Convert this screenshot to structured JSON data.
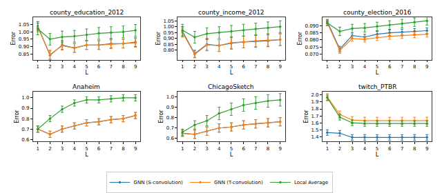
{
  "chart_data": [
    {
      "type": "line",
      "title": "county_education_2012",
      "x_label": "L",
      "y_label": "Error",
      "x": [
        1,
        2,
        3,
        4,
        5,
        6,
        7,
        8,
        9
      ],
      "xlim": [
        0.6,
        9.4
      ],
      "xticks": [
        1,
        2,
        3,
        4,
        5,
        6,
        7,
        8,
        9
      ],
      "ylim": [
        0.81,
        1.1
      ],
      "yticks": [
        0.85,
        {
          "value": 0.9,
          "label": "0.90"
        },
        0.95,
        {
          "value": 1.0,
          "label": "1.00"
        },
        1.05
      ],
      "grid": false,
      "marker": "circle",
      "legend": "bottom",
      "series": [
        {
          "name": "GNN (S-convolution)",
          "color": "#1f77b4",
          "values": [
            1.04,
            0.84,
            0.91,
            0.89,
            0.91,
            0.91,
            0.92,
            0.92,
            0.93
          ],
          "error": [
            0.03,
            0.03,
            0.03,
            0.03,
            0.03,
            0.03,
            0.03,
            0.03,
            0.03
          ]
        },
        {
          "name": "GNN (T-convolution)",
          "color": "#ff7f0e",
          "values": [
            1.03,
            0.845,
            0.905,
            0.89,
            0.91,
            0.91,
            0.915,
            0.92,
            0.925
          ],
          "error": [
            0.03,
            0.03,
            0.03,
            0.03,
            0.03,
            0.03,
            0.03,
            0.03,
            0.03
          ]
        },
        {
          "name": "Local Average",
          "color": "#2ca02c",
          "values": [
            1.02,
            0.95,
            0.965,
            0.97,
            0.98,
            0.99,
            0.995,
            1.0,
            1.01
          ],
          "error": [
            0.04,
            0.04,
            0.04,
            0.04,
            0.04,
            0.04,
            0.04,
            0.04,
            0.04
          ]
        }
      ]
    },
    {
      "type": "line",
      "title": "county_income_2012",
      "x_label": "L",
      "y_label": "Error",
      "x": [
        1,
        2,
        3,
        4,
        5,
        6,
        7,
        8,
        9
      ],
      "xlim": [
        0.6,
        9.4
      ],
      "xticks": [
        1,
        2,
        3,
        4,
        5,
        6,
        7,
        8,
        9
      ],
      "ylim": [
        0.72,
        1.08
      ],
      "yticks": [
        {
          "value": 0.8,
          "label": "0.80"
        },
        0.85,
        {
          "value": 0.9,
          "label": "0.90"
        },
        0.95,
        {
          "value": 1.0,
          "label": "1.00"
        },
        1.05
      ],
      "grid": false,
      "marker": "circle",
      "series": [
        {
          "name": "GNN (S-convolution)",
          "color": "#1f77b4",
          "values": [
            0.96,
            0.77,
            0.85,
            0.84,
            0.86,
            0.87,
            0.875,
            0.88,
            0.89
          ],
          "error": [
            0.04,
            0.03,
            0.05,
            0.05,
            0.05,
            0.05,
            0.05,
            0.05,
            0.05
          ]
        },
        {
          "name": "GNN (T-convolution)",
          "color": "#ff7f0e",
          "values": [
            0.95,
            0.765,
            0.845,
            0.84,
            0.865,
            0.87,
            0.88,
            0.885,
            0.89
          ],
          "error": [
            0.04,
            0.03,
            0.05,
            0.05,
            0.05,
            0.05,
            0.05,
            0.05,
            0.05
          ]
        },
        {
          "name": "Local Average",
          "color": "#2ca02c",
          "values": [
            0.97,
            0.91,
            0.94,
            0.95,
            0.96,
            0.97,
            0.98,
            0.99,
            1.0
          ],
          "error": [
            0.05,
            0.05,
            0.05,
            0.05,
            0.05,
            0.05,
            0.05,
            0.05,
            0.05
          ]
        }
      ]
    },
    {
      "type": "line",
      "title": "county_election_2016",
      "x_label": "L",
      "y_label": "Error",
      "x": [
        1,
        2,
        3,
        4,
        5,
        6,
        7,
        8,
        9
      ],
      "xlim": [
        0.6,
        9.4
      ],
      "xticks": [
        1,
        2,
        3,
        4,
        5,
        6,
        7,
        8,
        9
      ],
      "ylim": [
        0.066,
        0.096
      ],
      "yticks": [
        {
          "value": 0.07,
          "label": "0.070"
        },
        0.075,
        {
          "value": 0.08,
          "label": "0.080"
        },
        0.085,
        {
          "value": 0.09,
          "label": "0.090"
        }
      ],
      "grid": false,
      "marker": "circle",
      "series": [
        {
          "name": "GNN (S-convolution)",
          "color": "#1f77b4",
          "values": [
            0.093,
            0.0735,
            0.083,
            0.082,
            0.084,
            0.085,
            0.0855,
            0.086,
            0.0865
          ],
          "error": [
            0.0015,
            0.002,
            0.002,
            0.002,
            0.002,
            0.002,
            0.002,
            0.002,
            0.002
          ]
        },
        {
          "name": "GNN (T-convolution)",
          "color": "#ff7f0e",
          "values": [
            0.092,
            0.0725,
            0.081,
            0.0805,
            0.0815,
            0.0825,
            0.083,
            0.0835,
            0.084
          ],
          "error": [
            0.0015,
            0.002,
            0.002,
            0.002,
            0.002,
            0.002,
            0.002,
            0.002,
            0.002
          ]
        },
        {
          "name": "Local Average",
          "color": "#2ca02c",
          "values": [
            0.092,
            0.086,
            0.088,
            0.0885,
            0.0895,
            0.0905,
            0.0915,
            0.0925,
            0.0935
          ],
          "error": [
            0.002,
            0.003,
            0.003,
            0.003,
            0.003,
            0.003,
            0.003,
            0.003,
            0.003
          ]
        }
      ]
    },
    {
      "type": "line",
      "title": "Anaheim",
      "x_label": "L",
      "y_label": "Error",
      "x": [
        1,
        2,
        3,
        4,
        5,
        6,
        7,
        8,
        9
      ],
      "xlim": [
        0.6,
        9.4
      ],
      "xticks": [
        1,
        2,
        3,
        4,
        5,
        6,
        7,
        8,
        9
      ],
      "ylim": [
        0.58,
        1.06
      ],
      "yticks": [
        0.6,
        0.7,
        0.8,
        0.9,
        {
          "value": 1.0,
          "label": "1.0"
        }
      ],
      "grid": false,
      "marker": "circle",
      "series": [
        {
          "name": "GNN (S-convolution)",
          "color": "#1f77b4",
          "values": [
            0.7,
            0.65,
            0.7,
            0.73,
            0.76,
            0.77,
            0.79,
            0.8,
            0.83
          ],
          "error": [
            0.03,
            0.03,
            0.03,
            0.03,
            0.03,
            0.03,
            0.03,
            0.03,
            0.03
          ]
        },
        {
          "name": "GNN (T-convolution)",
          "color": "#ff7f0e",
          "values": [
            0.7,
            0.65,
            0.7,
            0.73,
            0.76,
            0.77,
            0.79,
            0.8,
            0.83
          ],
          "error": [
            0.03,
            0.03,
            0.03,
            0.03,
            0.03,
            0.03,
            0.03,
            0.03,
            0.03
          ]
        },
        {
          "name": "Local Average",
          "color": "#2ca02c",
          "values": [
            0.7,
            0.8,
            0.89,
            0.95,
            0.98,
            0.98,
            0.99,
            1.0,
            1.0
          ],
          "error": [
            0.03,
            0.03,
            0.03,
            0.03,
            0.03,
            0.03,
            0.03,
            0.03,
            0.03
          ]
        }
      ]
    },
    {
      "type": "line",
      "title": "ChicagoSketch",
      "x_label": "L",
      "y_label": "Error",
      "x": [
        1,
        2,
        3,
        4,
        5,
        6,
        7,
        8,
        9
      ],
      "xlim": [
        0.6,
        9.4
      ],
      "xticks": [
        1,
        2,
        3,
        4,
        5,
        6,
        7,
        8,
        9
      ],
      "ylim": [
        0.57,
        1.05
      ],
      "yticks": [
        0.6,
        0.7,
        0.8,
        0.9,
        {
          "value": 1.0,
          "label": "1.0"
        }
      ],
      "grid": false,
      "marker": "circle",
      "series": [
        {
          "name": "GNN (S-convolution)",
          "color": "#1f77b4",
          "values": [
            0.65,
            0.64,
            0.67,
            0.7,
            0.71,
            0.73,
            0.74,
            0.75,
            0.76
          ],
          "error": [
            0.03,
            0.04,
            0.04,
            0.04,
            0.04,
            0.04,
            0.04,
            0.04,
            0.04
          ]
        },
        {
          "name": "GNN (T-convolution)",
          "color": "#ff7f0e",
          "values": [
            0.65,
            0.64,
            0.67,
            0.7,
            0.71,
            0.73,
            0.74,
            0.75,
            0.76
          ],
          "error": [
            0.03,
            0.04,
            0.04,
            0.04,
            0.04,
            0.04,
            0.04,
            0.04,
            0.04
          ]
        },
        {
          "name": "Local Average",
          "color": "#2ca02c",
          "values": [
            0.66,
            0.73,
            0.77,
            0.84,
            0.88,
            0.92,
            0.94,
            0.96,
            0.97
          ],
          "error": [
            0.03,
            0.04,
            0.05,
            0.06,
            0.06,
            0.06,
            0.06,
            0.06,
            0.06
          ]
        }
      ]
    },
    {
      "type": "line",
      "title": "twitch_PTBR",
      "x_label": "L",
      "y_label": "Error",
      "x": [
        1,
        2,
        3,
        4,
        5,
        6,
        7,
        8,
        9
      ],
      "xlim": [
        0.6,
        9.4
      ],
      "xticks": [
        1,
        2,
        3,
        4,
        5,
        6,
        7,
        8,
        9
      ],
      "ylim": [
        1.33,
        2.05
      ],
      "yticks": [
        1.4,
        1.5,
        1.6,
        1.7,
        1.8,
        1.9,
        {
          "value": 2.0,
          "label": "2.0"
        }
      ],
      "grid": false,
      "marker": "circle",
      "series": [
        {
          "name": "GNN (S-convolution)",
          "color": "#1f77b4",
          "values": [
            1.46,
            1.45,
            1.39,
            1.39,
            1.39,
            1.39,
            1.39,
            1.39,
            1.39
          ],
          "error": [
            0.04,
            0.04,
            0.04,
            0.04,
            0.04,
            0.04,
            0.04,
            0.04,
            0.04
          ]
        },
        {
          "name": "GNN (T-convolution)",
          "color": "#ff7f0e",
          "values": [
            1.97,
            1.72,
            1.64,
            1.63,
            1.63,
            1.63,
            1.63,
            1.63,
            1.63
          ],
          "error": [
            0.05,
            0.05,
            0.05,
            0.05,
            0.05,
            0.05,
            0.05,
            0.05,
            0.05
          ]
        },
        {
          "name": "Local Average",
          "color": "#2ca02c",
          "values": [
            1.96,
            1.68,
            1.6,
            1.59,
            1.59,
            1.59,
            1.59,
            1.59,
            1.59
          ],
          "error": [
            0.04,
            0.04,
            0.04,
            0.04,
            0.04,
            0.04,
            0.04,
            0.04,
            0.04
          ]
        }
      ]
    }
  ]
}
